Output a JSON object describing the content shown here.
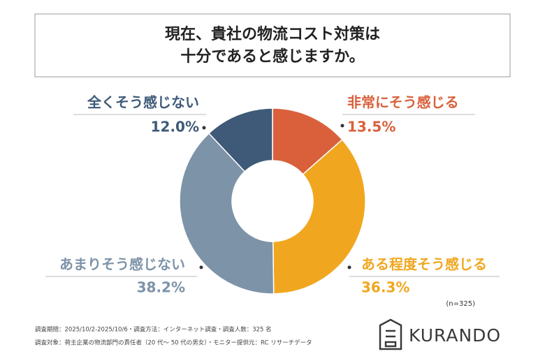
{
  "chart_data": {
    "type": "donut",
    "title": [
      "現在、貴社の物流コスト対策は",
      "十分であると感じますか。"
    ],
    "categories": [
      "非常にそう感じる",
      "ある程度そう感じる",
      "あまりそう感じない",
      "全くそう感じない"
    ],
    "values": [
      13.5,
      36.3,
      38.2,
      12.0
    ],
    "value_labels": [
      "13.5%",
      "36.3%",
      "38.2%",
      "12.0%"
    ],
    "colors": [
      "#d9603b",
      "#f0a71f",
      "#7d93a8",
      "#3e5a78"
    ],
    "sample_size": "(n=325)",
    "footnotes": [
      "調査期間：2025/10/2-2025/10/6・調査方法：インターネット調査・調査人数：325 名",
      "調査対象：荷主企業の物流部門の責任者（20 代～ 50 代の男女）・モニター提供元：RC リサーチデータ"
    ],
    "brand": "KURANDO"
  }
}
